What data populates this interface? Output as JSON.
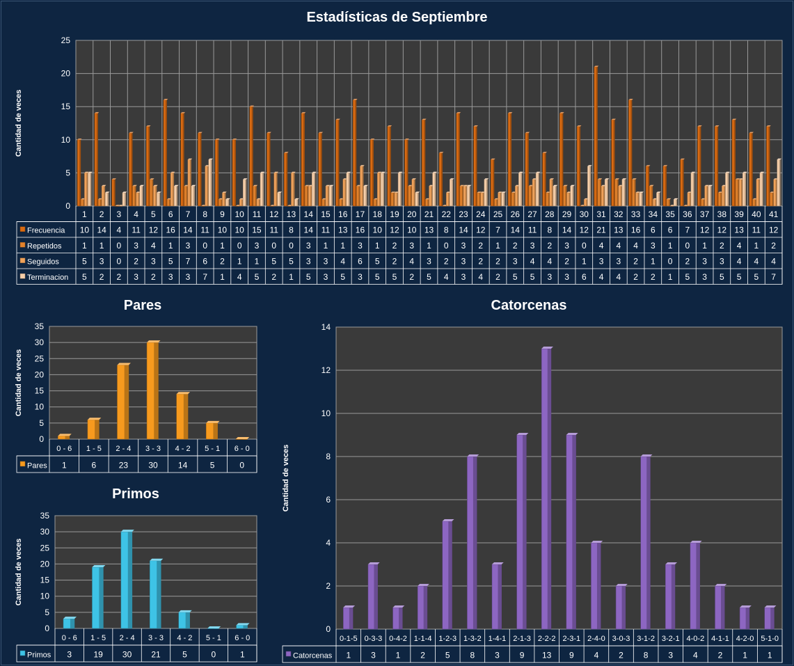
{
  "colors": {
    "background": "#0e2541",
    "plot_area": "#3a3a3a",
    "frecuencia": "#d86a12",
    "repetidos": "#e2822c",
    "seguidos": "#f0a25a",
    "terminacion": "#f7cfa9",
    "pares": "#f79a1e",
    "primos": "#3ec3e6",
    "catorcenas": "#8d66c2"
  },
  "main": {
    "title": "Estadísticas de Septiembre",
    "ylabel": "Cantidad de veces"
  },
  "chart_data": [
    {
      "id": "main",
      "type": "bar",
      "title": "Estadísticas de Septiembre",
      "ylabel": "Cantidad de veces",
      "ylim": [
        0,
        25
      ],
      "yticks": [
        0,
        5,
        10,
        15,
        20,
        25
      ],
      "grid": true,
      "legend": "data table",
      "categories": [
        "1",
        "2",
        "3",
        "4",
        "5",
        "6",
        "7",
        "8",
        "9",
        "10",
        "11",
        "12",
        "13",
        "14",
        "15",
        "16",
        "17",
        "18",
        "19",
        "20",
        "21",
        "22",
        "23",
        "24",
        "25",
        "26",
        "27",
        "28",
        "29",
        "30",
        "31",
        "32",
        "33",
        "34",
        "35",
        "36",
        "37",
        "38",
        "39",
        "40",
        "41"
      ],
      "series": [
        {
          "name": "Frecuencia",
          "color": "#d86a12",
          "values": [
            10,
            14,
            4,
            11,
            12,
            16,
            14,
            11,
            10,
            10,
            15,
            11,
            8,
            14,
            11,
            13,
            16,
            10,
            12,
            10,
            13,
            8,
            14,
            12,
            7,
            14,
            11,
            8,
            14,
            12,
            21,
            13,
            16,
            6,
            6,
            7,
            12,
            12,
            13,
            11,
            12
          ]
        },
        {
          "name": "Repetidos",
          "color": "#e2822c",
          "values": [
            1,
            1,
            0,
            3,
            4,
            1,
            3,
            0,
            1,
            0,
            3,
            0,
            0,
            3,
            1,
            1,
            3,
            1,
            2,
            3,
            1,
            0,
            3,
            2,
            1,
            2,
            3,
            2,
            3,
            0,
            4,
            4,
            4,
            3,
            1,
            0,
            1,
            2,
            4,
            1,
            2
          ]
        },
        {
          "name": "Seguidos",
          "color": "#f0a25a",
          "values": [
            5,
            3,
            0,
            2,
            3,
            5,
            7,
            6,
            2,
            1,
            1,
            5,
            5,
            3,
            3,
            4,
            6,
            5,
            2,
            4,
            3,
            2,
            3,
            2,
            2,
            3,
            4,
            4,
            2,
            1,
            3,
            3,
            2,
            1,
            0,
            2,
            3,
            3,
            4,
            4,
            4
          ]
        },
        {
          "name": "Terminacion",
          "color": "#f7cfa9",
          "values": [
            5,
            2,
            2,
            3,
            2,
            3,
            3,
            7,
            1,
            4,
            5,
            2,
            1,
            5,
            3,
            5,
            3,
            5,
            5,
            2,
            5,
            4,
            3,
            4,
            2,
            5,
            5,
            3,
            3,
            6,
            4,
            4,
            2,
            2,
            1,
            5,
            3,
            5,
            5,
            5,
            7
          ]
        }
      ]
    },
    {
      "id": "pares",
      "type": "bar",
      "title": "Pares",
      "ylabel": "Cantidad de veces",
      "ylim": [
        0,
        35
      ],
      "yticks": [
        0,
        5,
        10,
        15,
        20,
        25,
        30,
        35
      ],
      "grid": true,
      "legend": "data table",
      "categories": [
        "0 - 6",
        "1 - 5",
        "2 - 4",
        "3 - 3",
        "4 - 2",
        "5 - 1",
        "6 - 0"
      ],
      "series": [
        {
          "name": "Pares",
          "color": "#f79a1e",
          "values": [
            1,
            6,
            23,
            30,
            14,
            5,
            0
          ]
        }
      ]
    },
    {
      "id": "primos",
      "type": "bar",
      "title": "Primos",
      "ylabel": "Cantidad de veces",
      "ylim": [
        0,
        35
      ],
      "yticks": [
        0,
        5,
        10,
        15,
        20,
        25,
        30,
        35
      ],
      "grid": true,
      "legend": "data table",
      "categories": [
        "0 - 6",
        "1 - 5",
        "2 - 4",
        "3 - 3",
        "4 - 2",
        "5 - 1",
        "6 - 0"
      ],
      "series": [
        {
          "name": "Primos",
          "color": "#3ec3e6",
          "values": [
            3,
            19,
            30,
            21,
            5,
            0,
            1
          ]
        }
      ]
    },
    {
      "id": "catorcenas",
      "type": "bar",
      "title": "Catorcenas",
      "ylabel": "Cantidad de veces",
      "ylim": [
        0,
        14
      ],
      "yticks": [
        0,
        2,
        4,
        6,
        8,
        10,
        12,
        14
      ],
      "grid": true,
      "legend": "data table",
      "categories": [
        "0-1-5",
        "0-3-3",
        "0-4-2",
        "1-1-4",
        "1-2-3",
        "1-3-2",
        "1-4-1",
        "2-1-3",
        "2-2-2",
        "2-3-1",
        "2-4-0",
        "3-0-3",
        "3-1-2",
        "3-2-1",
        "4-0-2",
        "4-1-1",
        "4-2-0",
        "5-1-0"
      ],
      "series": [
        {
          "name": "Catorcenas",
          "color": "#8d66c2",
          "values": [
            1,
            3,
            1,
            2,
            5,
            8,
            3,
            9,
            13,
            9,
            4,
            2,
            8,
            3,
            4,
            2,
            1,
            1
          ]
        }
      ]
    }
  ]
}
